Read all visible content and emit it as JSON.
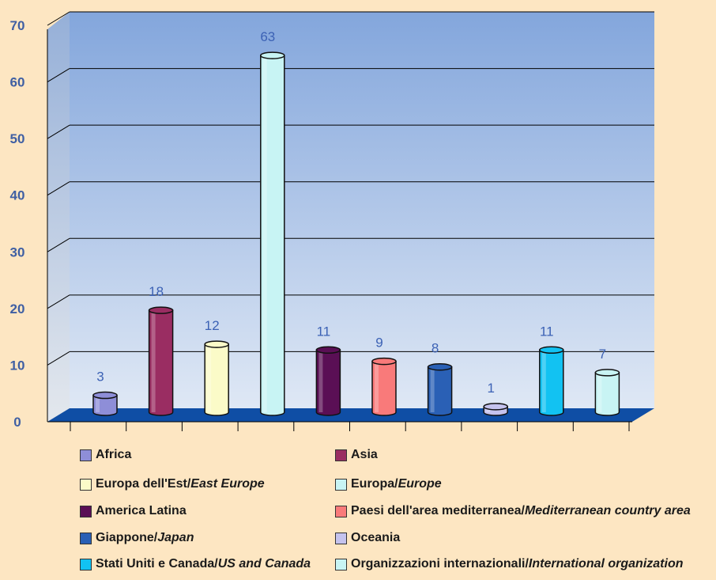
{
  "chart_data": {
    "type": "bar",
    "title": "",
    "xlabel": "",
    "ylabel": "",
    "ylim": [
      0,
      70
    ],
    "yticks": [
      "0",
      "10",
      "20",
      "30",
      "40",
      "50",
      "60",
      "70"
    ],
    "grid": true,
    "legend_position": "bottom",
    "background_color": "#fde6c2",
    "plot_gradient": [
      "#83a6dc",
      "#dfe8f5"
    ],
    "floor_color": "#0f4ea5",
    "label_color": "#3c62b5",
    "categories": [
      {
        "it": "Africa",
        "en": "",
        "value": 3,
        "color": "#8e8ed8"
      },
      {
        "it": "Asia",
        "en": "",
        "value": 18,
        "color": "#9a2d62"
      },
      {
        "it": "Europa dell'Est/",
        "en": "East Europe",
        "value": 12,
        "color": "#fbfbc8"
      },
      {
        "it": "Europa/",
        "en": "Europe",
        "value": 63,
        "color": "#c8f4f4"
      },
      {
        "it": "America Latina",
        "en": "",
        "value": 11,
        "color": "#5a0f55"
      },
      {
        "it": "Paesi dell'area mediterranea/",
        "en": "Mediterranean country area",
        "value": 9,
        "color": "#f97a7a"
      },
      {
        "it": "Giappone/",
        "en": "Japan",
        "value": 8,
        "color": "#2a60b5"
      },
      {
        "it": "Oceania",
        "en": "",
        "value": 1,
        "color": "#c5c3ee"
      },
      {
        "it": "Stati Uniti e Canada/",
        "en": "US and Canada",
        "value": 11,
        "color": "#12c2f2"
      },
      {
        "it": "Organizzazioni internazionali/",
        "en": "International organization",
        "value": 7,
        "color": "#c8f4f4"
      }
    ]
  }
}
